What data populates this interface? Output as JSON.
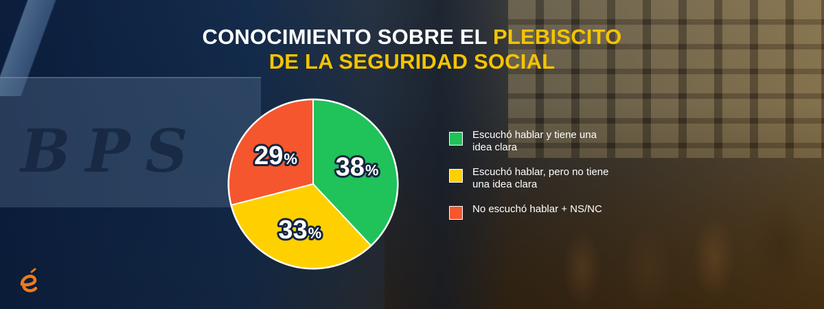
{
  "title": {
    "part1": "CONOCIMIENTO SOBRE EL ",
    "part2": "PLEBISCITO",
    "part3": "DE LA SEGURIDAD SOCIAL"
  },
  "chart_data": {
    "type": "pie",
    "title": "CONOCIMIENTO SOBRE EL PLEBISCITO DE LA SEGURIDAD SOCIAL",
    "categories": [
      "Escuchó hablar y tiene una idea clara",
      "Escuchó hablar, pero no tiene una idea clara",
      "No escuchó hablar + NS/NC"
    ],
    "values": [
      38,
      33,
      29
    ],
    "value_labels": [
      "38",
      "33",
      "29"
    ],
    "unit": "%",
    "colors": [
      "#20c25a",
      "#ffd000",
      "#f5562d"
    ],
    "legend_placement": "right"
  },
  "legend": [
    {
      "label": "Escuchó hablar y tiene una idea clara",
      "color": "#20c25a"
    },
    {
      "label": "Escuchó hablar, pero no tiene una idea clara",
      "color": "#ffd000"
    },
    {
      "label": "No escuchó hablar + NS/NC",
      "color": "#f5562d"
    }
  ],
  "logo": {
    "icon": "e-logo-icon",
    "color": "#f07a1a"
  },
  "background": {
    "sign_text": "BPS"
  }
}
